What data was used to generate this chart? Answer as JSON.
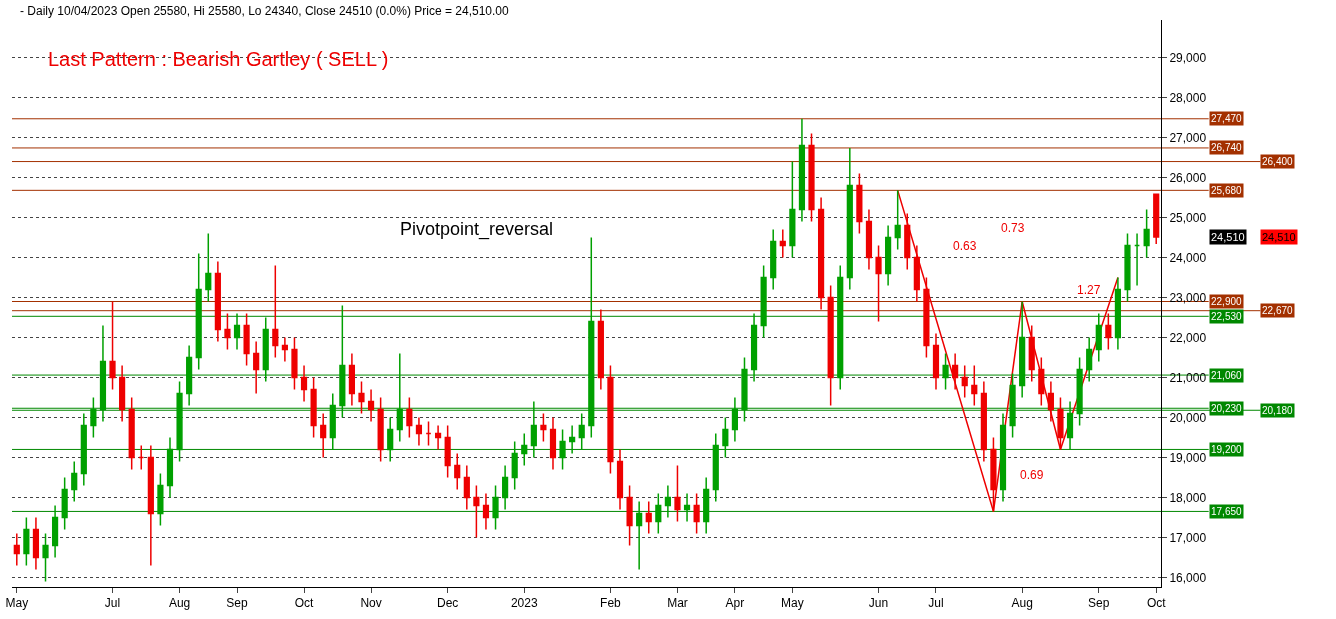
{
  "chart_data": {
    "type": "candlestick",
    "title": "- Daily 10/04/2023 Open 25580, Hi 25580, Lo 24340, Close 24510 (0.0%) Price = 24,510.00",
    "subtitle": "Last Pattern : Bearish Gartley ( SELL )",
    "categories": [
      "May",
      null,
      null,
      null,
      null,
      null,
      null,
      null,
      null,
      null,
      "Jul",
      null,
      null,
      null,
      null,
      null,
      null,
      "Aug",
      null,
      null,
      null,
      null,
      null,
      "Sep",
      null,
      null,
      null,
      null,
      null,
      null,
      "Oct",
      null,
      null,
      null,
      null,
      null,
      null,
      "Nov",
      null,
      null,
      null,
      null,
      null,
      null,
      null,
      "Dec",
      null,
      null,
      null,
      null,
      null,
      null,
      null,
      "2023",
      null,
      null,
      null,
      null,
      null,
      null,
      null,
      null,
      "Feb",
      null,
      null,
      null,
      null,
      null,
      null,
      "Mar",
      null,
      null,
      null,
      null,
      null,
      "Apr",
      null,
      null,
      null,
      null,
      null,
      "May",
      null,
      null,
      null,
      null,
      null,
      null,
      null,
      null,
      "Jun",
      null,
      null,
      null,
      null,
      null,
      "Jul",
      null,
      null,
      null,
      null,
      null,
      null,
      null,
      null,
      "Aug",
      null,
      null,
      null,
      null,
      null,
      null,
      null,
      "Sep",
      null,
      null,
      null,
      null,
      null,
      "Oct"
    ],
    "ohlc": [
      [
        16800,
        17100,
        16300,
        16600
      ],
      [
        16600,
        17500,
        16300,
        17200
      ],
      [
        17200,
        17500,
        16200,
        16500
      ],
      [
        16500,
        17100,
        15900,
        16800
      ],
      [
        16800,
        17800,
        16500,
        17500
      ],
      [
        17500,
        18500,
        17200,
        18200
      ],
      [
        18200,
        18900,
        17900,
        18600
      ],
      [
        18600,
        20100,
        18300,
        19800
      ],
      [
        19800,
        20500,
        19500,
        20200
      ],
      [
        20200,
        22300,
        19900,
        21400
      ],
      [
        21400,
        22900,
        20700,
        21000
      ],
      [
        21000,
        21300,
        19900,
        20200
      ],
      [
        20200,
        20500,
        18700,
        19000
      ],
      [
        19000,
        19300,
        18700,
        19000
      ],
      [
        19000,
        19300,
        16300,
        17600
      ],
      [
        17600,
        18600,
        17300,
        18300
      ],
      [
        18300,
        19500,
        18000,
        19200
      ],
      [
        19200,
        20900,
        18900,
        20600
      ],
      [
        20600,
        21800,
        20300,
        21500
      ],
      [
        21500,
        24100,
        21200,
        23200
      ],
      [
        23200,
        24600,
        22900,
        23600
      ],
      [
        23600,
        23900,
        21900,
        22200
      ],
      [
        22200,
        22600,
        21700,
        22000
      ],
      [
        22000,
        22600,
        21700,
        22300
      ],
      [
        22300,
        22600,
        21300,
        21600
      ],
      [
        21600,
        21900,
        20600,
        21200
      ],
      [
        21200,
        22500,
        20900,
        22200
      ],
      [
        22200,
        23800,
        21500,
        21800
      ],
      [
        21800,
        22000,
        21400,
        21700
      ],
      [
        21700,
        22000,
        20700,
        21000
      ],
      [
        21000,
        21300,
        20400,
        20700
      ],
      [
        20700,
        21000,
        19500,
        19800
      ],
      [
        19800,
        20100,
        19000,
        19500
      ],
      [
        19500,
        20600,
        19200,
        20300
      ],
      [
        20300,
        22800,
        20000,
        21300
      ],
      [
        21300,
        21600,
        20300,
        20600
      ],
      [
        20600,
        20900,
        20100,
        20400
      ],
      [
        20400,
        20700,
        19900,
        20200
      ],
      [
        20200,
        20500,
        18900,
        19200
      ],
      [
        19200,
        20000,
        18900,
        19700
      ],
      [
        19700,
        21600,
        19400,
        20200
      ],
      [
        20200,
        20500,
        19500,
        19800
      ],
      [
        19800,
        20000,
        19300,
        19600
      ],
      [
        19600,
        19900,
        19300,
        19600
      ],
      [
        19600,
        19800,
        19200,
        19500
      ],
      [
        19500,
        19800,
        18500,
        18800
      ],
      [
        18800,
        19100,
        18200,
        18500
      ],
      [
        18500,
        18800,
        17700,
        18000
      ],
      [
        18000,
        18300,
        17000,
        17800
      ],
      [
        17800,
        18100,
        17200,
        17500
      ],
      [
        17500,
        18300,
        17200,
        18000
      ],
      [
        18000,
        18800,
        17700,
        18500
      ],
      [
        18500,
        19400,
        18200,
        19100
      ],
      [
        19100,
        19600,
        18800,
        19300
      ],
      [
        19300,
        20400,
        19000,
        19800
      ],
      [
        19800,
        20100,
        19400,
        19700
      ],
      [
        19700,
        20000,
        18700,
        19000
      ],
      [
        19000,
        19700,
        18700,
        19400
      ],
      [
        19400,
        19800,
        19100,
        19500
      ],
      [
        19500,
        20100,
        19200,
        19800
      ],
      [
        19800,
        24500,
        19500,
        22400
      ],
      [
        22400,
        22700,
        20700,
        21000
      ],
      [
        21000,
        21300,
        18600,
        18900
      ],
      [
        18900,
        19200,
        17700,
        18000
      ],
      [
        18000,
        18300,
        16800,
        17300
      ],
      [
        17300,
        17900,
        16200,
        17600
      ],
      [
        17600,
        17900,
        17100,
        17400
      ],
      [
        17400,
        18100,
        17100,
        17800
      ],
      [
        17800,
        18300,
        17500,
        18000
      ],
      [
        18000,
        18800,
        17400,
        17700
      ],
      [
        17700,
        18100,
        17400,
        17800
      ],
      [
        17800,
        18100,
        17100,
        17400
      ],
      [
        17400,
        18500,
        17100,
        18200
      ],
      [
        18200,
        19600,
        17900,
        19300
      ],
      [
        19300,
        20000,
        19000,
        19700
      ],
      [
        19700,
        20500,
        19400,
        20200
      ],
      [
        20200,
        21500,
        19900,
        21200
      ],
      [
        21200,
        22600,
        20900,
        22300
      ],
      [
        22300,
        23800,
        22000,
        23500
      ],
      [
        23500,
        24700,
        23200,
        24400
      ],
      [
        24400,
        24700,
        24000,
        24300
      ],
      [
        24300,
        26400,
        24000,
        25200
      ],
      [
        25200,
        27470,
        24900,
        26800
      ],
      [
        26800,
        27100,
        24900,
        25200
      ],
      [
        25200,
        25500,
        22700,
        23000
      ],
      [
        23000,
        23300,
        20300,
        21000
      ],
      [
        21000,
        23800,
        20700,
        23500
      ],
      [
        23500,
        26740,
        23200,
        25800
      ],
      [
        25800,
        26100,
        24600,
        24900
      ],
      [
        24900,
        25200,
        23700,
        24000
      ],
      [
        24000,
        24300,
        22400,
        23600
      ],
      [
        23600,
        24800,
        23300,
        24500
      ],
      [
        24500,
        25680,
        24200,
        24800
      ],
      [
        24800,
        25100,
        23700,
        24000
      ],
      [
        24000,
        24300,
        22900,
        23200
      ],
      [
        23200,
        23500,
        21500,
        21800
      ],
      [
        21800,
        22100,
        20700,
        21000
      ],
      [
        21000,
        21600,
        20700,
        21300
      ],
      [
        21300,
        21600,
        20700,
        21000
      ],
      [
        21000,
        21300,
        20500,
        20800
      ],
      [
        20800,
        21300,
        20300,
        20600
      ],
      [
        20600,
        20900,
        18900,
        19200
      ],
      [
        19200,
        19500,
        17650,
        18200
      ],
      [
        18200,
        20100,
        17900,
        19800
      ],
      [
        19800,
        21100,
        19500,
        20800
      ],
      [
        20800,
        22900,
        20500,
        22000
      ],
      [
        22000,
        22300,
        20900,
        21200
      ],
      [
        21200,
        21500,
        20300,
        20600
      ],
      [
        20600,
        20900,
        19900,
        20200
      ],
      [
        20200,
        20500,
        19200,
        19500
      ],
      [
        19500,
        20400,
        19200,
        20100
      ],
      [
        20100,
        21500,
        19800,
        21200
      ],
      [
        21200,
        22000,
        20900,
        21700
      ],
      [
        21700,
        22600,
        21400,
        22300
      ],
      [
        22300,
        22600,
        21700,
        22000
      ],
      [
        22000,
        23500,
        21700,
        23200
      ],
      [
        23200,
        24600,
        22900,
        24300
      ],
      [
        24300,
        24600,
        23300,
        24300
      ],
      [
        24300,
        25200,
        24000,
        24700
      ],
      [
        25580,
        25580,
        24340,
        24510
      ]
    ],
    "series": [
      {
        "type": "line",
        "color": "#ee0000",
        "values": [
          null,
          null,
          null,
          null,
          null,
          null,
          null,
          null,
          null,
          null,
          null,
          null,
          null,
          null,
          null,
          null,
          null,
          null,
          null,
          null,
          null,
          null,
          null,
          null,
          null,
          null,
          null,
          null,
          null,
          null,
          null,
          null,
          null,
          null,
          null,
          null,
          null,
          null,
          null,
          null,
          null,
          null,
          null,
          null,
          null,
          null,
          null,
          null,
          null,
          null,
          null,
          null,
          null,
          null,
          null,
          null,
          null,
          null,
          null,
          null,
          null,
          null,
          null,
          null,
          null,
          null,
          null,
          null,
          null,
          null,
          null,
          null,
          null,
          null,
          null,
          null,
          null,
          null,
          null,
          null,
          null,
          null,
          null,
          null,
          null,
          null,
          null,
          null,
          null,
          null,
          null,
          null,
          25680,
          null,
          null,
          null,
          null,
          null,
          null,
          null,
          null,
          null,
          17650,
          null,
          null,
          22900,
          null,
          null,
          null,
          19200,
          null,
          null,
          null,
          null,
          null,
          23500,
          null,
          null,
          null,
          null
        ]
      }
    ],
    "ylim": [
      15760,
      29940
    ],
    "yticks": [
      {
        "value": 16000,
        "label": "16,000"
      },
      {
        "value": 17000,
        "label": "17,000"
      },
      {
        "value": 18000,
        "label": "18,000"
      },
      {
        "value": 19000,
        "label": "19,000"
      },
      {
        "value": 20000,
        "label": "20,000"
      },
      {
        "value": 21000,
        "label": "21,000"
      },
      {
        "value": 22000,
        "label": "22,000"
      },
      {
        "value": 23000,
        "label": "23,000"
      },
      {
        "value": 24000,
        "label": "24,000"
      },
      {
        "value": 25000,
        "label": "25,000"
      },
      {
        "value": 26000,
        "label": "26,000"
      },
      {
        "value": 27000,
        "label": "27,000"
      },
      {
        "value": 28000,
        "label": "28,000"
      },
      {
        "value": 29000,
        "label": "29,000"
      }
    ],
    "grid": "y",
    "ref_lines": [
      {
        "axis": "y",
        "value": 27470,
        "label": "27,470",
        "color": "#a33000"
      },
      {
        "axis": "y",
        "value": 26740,
        "label": "26,740",
        "color": "#a33000"
      },
      {
        "axis": "y",
        "value": 26400,
        "label": "26,400",
        "color": "#a33000"
      },
      {
        "axis": "y",
        "value": 25680,
        "label": "25,680",
        "color": "#a33000"
      },
      {
        "axis": "y",
        "value": 22900,
        "label": "22,900",
        "color": "#a33000"
      },
      {
        "axis": "y",
        "value": 22670,
        "label": "22,670",
        "color": "#a33000"
      },
      {
        "axis": "y",
        "value": 22530,
        "label": "22,530",
        "color": "#008800"
      },
      {
        "axis": "y",
        "value": 21060,
        "label": "21,060",
        "color": "#008800"
      },
      {
        "axis": "y",
        "value": 20230,
        "label": "20,230",
        "color": "#008800"
      },
      {
        "axis": "y",
        "value": 20180,
        "label": "20,180",
        "color": "#008800"
      },
      {
        "axis": "y",
        "value": 19200,
        "label": "19,200",
        "color": "#008800"
      },
      {
        "axis": "y",
        "value": 17650,
        "label": "17,650",
        "color": "#008800"
      }
    ],
    "annotations": [
      "Pivotpoint_reversal",
      "0.73",
      "0.63",
      "1.27",
      "0.69",
      "24,510",
      "24,510"
    ]
  }
}
